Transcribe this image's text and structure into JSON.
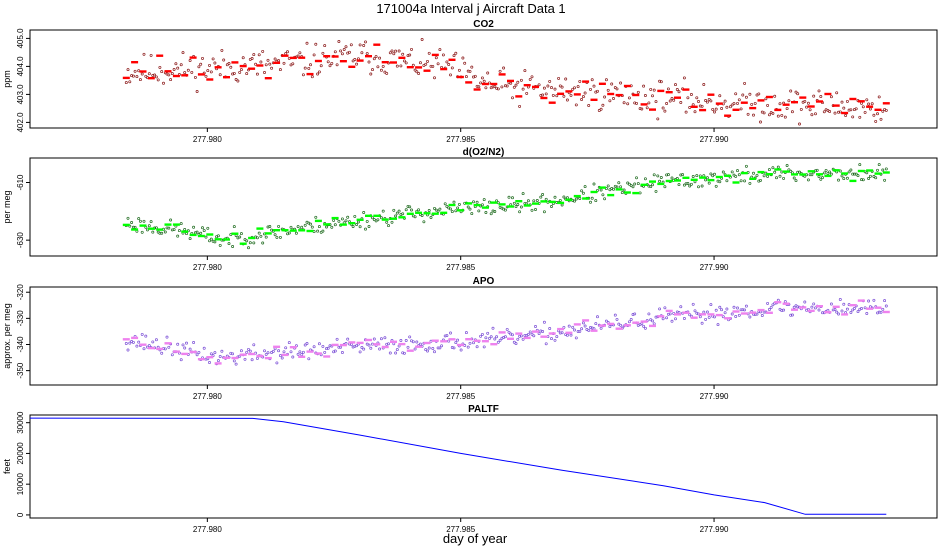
{
  "figure": {
    "title": "171004a   Interval j Aircraft Data 1",
    "xlabel": "day of year"
  },
  "chart_data": [
    {
      "type": "scatter",
      "title": "CO2",
      "ylabel": "ppm",
      "xlim": [
        277.9765,
        277.9944
      ],
      "ylim": [
        401.8,
        405.3
      ],
      "yticks": [
        402.0,
        403.0,
        404.0,
        405.0
      ],
      "yticklabels": [
        "402.0",
        "403.0",
        "404.0",
        "405.0"
      ],
      "xticks": [
        277.98,
        277.985,
        277.99
      ],
      "xticklabels": [
        "277.980",
        "277.985",
        "277.990"
      ],
      "x_start": 277.9784,
      "x_end": 277.9934,
      "trend": [
        [
          0,
          403.8
        ],
        [
          0.22,
          404.1
        ],
        [
          0.3,
          404.4
        ],
        [
          0.42,
          404.0
        ],
        [
          0.48,
          403.3
        ],
        [
          0.65,
          403.0
        ],
        [
          0.8,
          402.7
        ],
        [
          1,
          402.5
        ]
      ],
      "noise": 0.6,
      "avg_noise": 0.35,
      "seed": 11,
      "point_color": "#8b1a1a",
      "avg_color": "#ff0000"
    },
    {
      "type": "scatter",
      "title": "d(O2/N2)",
      "ylabel": "per meg",
      "xlim": [
        277.9765,
        277.9944
      ],
      "ylim": [
        -635.5,
        -601.5
      ],
      "yticks": [
        -630,
        -610
      ],
      "yticklabels": [
        "-630",
        "-610"
      ],
      "xticks": [
        277.98,
        277.985,
        277.99
      ],
      "xticklabels": [
        "277.980",
        "277.985",
        "277.990"
      ],
      "x_start": 277.9784,
      "x_end": 277.9934,
      "trend": [
        [
          0,
          -624
        ],
        [
          0.08,
          -627
        ],
        [
          0.13,
          -630
        ],
        [
          0.25,
          -625
        ],
        [
          0.4,
          -620
        ],
        [
          0.55,
          -617
        ],
        [
          0.7,
          -610
        ],
        [
          0.85,
          -607
        ],
        [
          1,
          -607
        ]
      ],
      "noise": 3.0,
      "avg_noise": 1.6,
      "seed": 23,
      "point_color": "#1f6b1f",
      "avg_color": "#00ff00"
    },
    {
      "type": "scatter",
      "title": "APO",
      "ylabel": "approx. per meg",
      "xlim": [
        277.9765,
        277.9944
      ],
      "ylim": [
        -355.5,
        -318.0
      ],
      "yticks": [
        -350,
        -340,
        -330,
        -320
      ],
      "yticklabels": [
        "-350",
        "-340",
        "-330",
        "-320"
      ],
      "xticks": [
        277.98,
        277.985,
        277.99
      ],
      "xticklabels": [
        "277.980",
        "277.985",
        "277.990"
      ],
      "x_start": 277.9784,
      "x_end": 277.9934,
      "trend": [
        [
          0,
          -338
        ],
        [
          0.12,
          -345
        ],
        [
          0.3,
          -341
        ],
        [
          0.5,
          -338
        ],
        [
          0.7,
          -330
        ],
        [
          0.85,
          -326
        ],
        [
          1,
          -326
        ]
      ],
      "noise": 3.5,
      "avg_noise": 2.0,
      "seed": 37,
      "point_color": "#7b4fd6",
      "avg_color": "#ee82ee"
    },
    {
      "type": "line",
      "title": "PALTF",
      "ylabel": "feet",
      "xlim": [
        277.9765,
        277.9944
      ],
      "ylim": [
        -1000,
        32500
      ],
      "yticks": [
        0,
        10000,
        20000,
        30000
      ],
      "yticklabels": [
        "0",
        "10000",
        "20000",
        "30000"
      ],
      "xticks": [
        277.98,
        277.985,
        277.99
      ],
      "xticklabels": [
        "277.980",
        "277.985",
        "277.990"
      ],
      "x": [
        277.9765,
        277.9809,
        277.9815,
        277.983,
        277.985,
        277.987,
        277.989,
        277.99,
        277.991,
        277.9918,
        277.9934
      ],
      "y": [
        31500,
        31400,
        30300,
        26000,
        20000,
        14500,
        9500,
        6500,
        4000,
        200,
        200
      ],
      "line_color": "#0000ff"
    }
  ]
}
